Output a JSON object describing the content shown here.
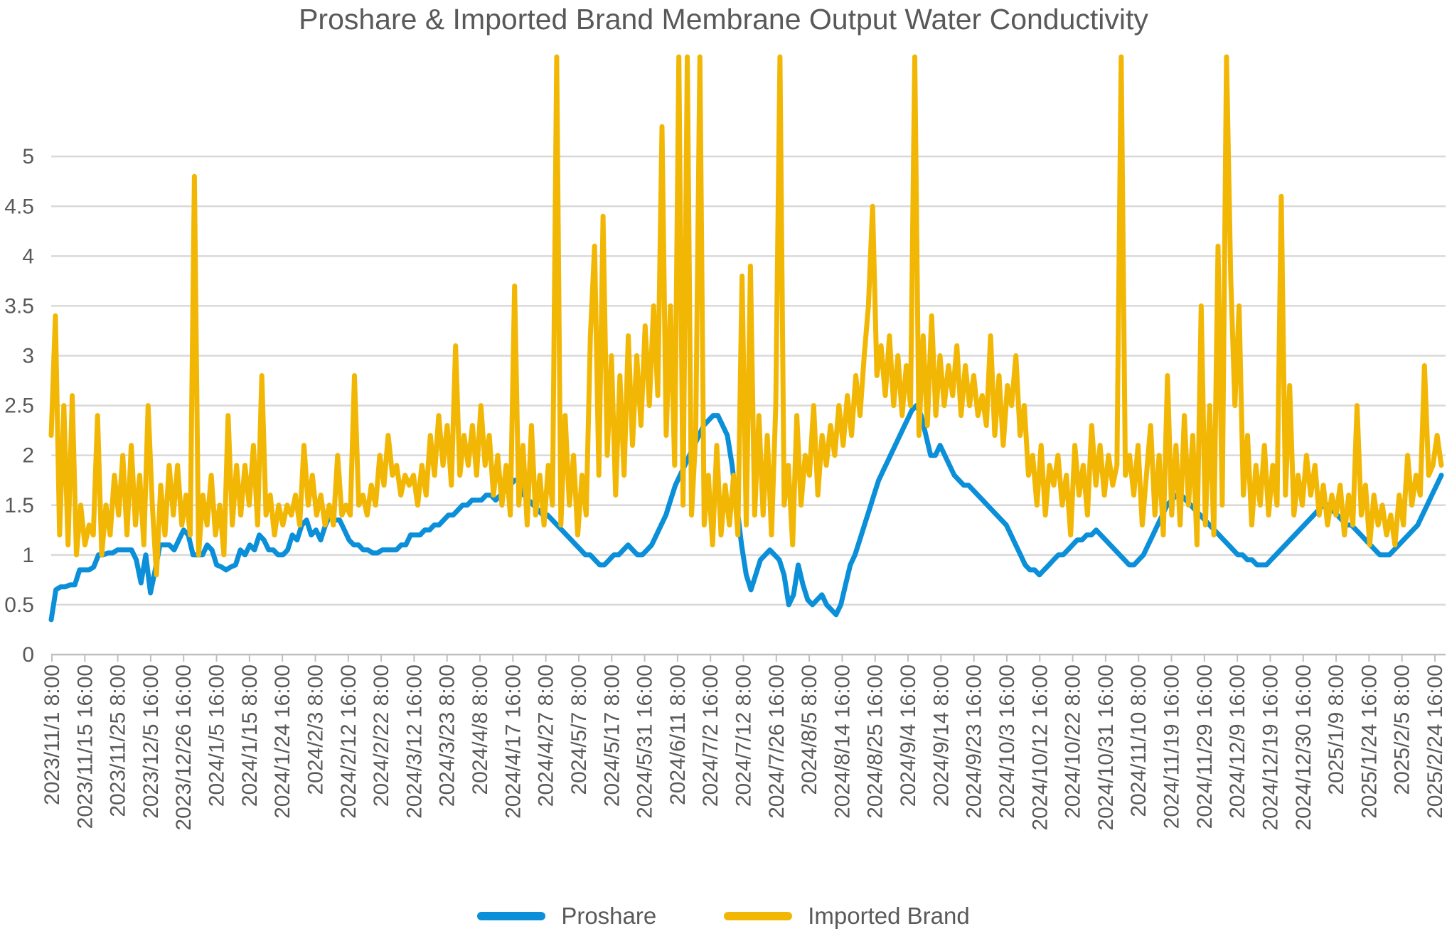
{
  "chart_data": {
    "type": "line",
    "title": "Proshare & Imported Brand Membrane Output Water Conductivity",
    "xlabel": "",
    "ylabel": "",
    "ylim": [
      0,
      6
    ],
    "yticks": [
      "0",
      "0.5",
      "1",
      "1.5",
      "2",
      "2.5",
      "3",
      "3.5",
      "4",
      "4.5",
      "5"
    ],
    "grid": true,
    "legend_position": "bottom",
    "x_tick_labels": [
      "2023/11/1 8:00",
      "2023/11/15 16:00",
      "2023/11/25 8:00",
      "2023/12/5 16:00",
      "2023/12/26 16:00",
      "2024/1/5 16:00",
      "2024/1/15 8:00",
      "2024/1/24 16:00",
      "2024/2/3 8:00",
      "2024/2/12 16:00",
      "2024/2/22 8:00",
      "2024/3/12 16:00",
      "2024/3/23 8:00",
      "2024/4/8 8:00",
      "2024/4/17 16:00",
      "2024/4/27 8:00",
      "2024/5/7 8:00",
      "2024/5/17 8:00",
      "2024/5/31 16:00",
      "2024/6/11 8:00",
      "2024/7/2 16:00",
      "2024/7/12 8:00",
      "2024/7/26 16:00",
      "2024/8/5 8:00",
      "2024/8/14 16:00",
      "2024/8/25 16:00",
      "2024/9/4 16:00",
      "2024/9/14 8:00",
      "2024/9/23 16:00",
      "2024/10/3 16:00",
      "2024/10/12 16:00",
      "2024/10/22 8:00",
      "2024/10/31 16:00",
      "2024/11/10 8:00",
      "2024/11/19 16:00",
      "2024/11/29 16:00",
      "2024/12/9 16:00",
      "2024/12/19 16:00",
      "2024/12/30 16:00",
      "2025/1/9 8:00",
      "2025/1/24 16:00",
      "2025/2/5 8:00",
      "2025/2/24 16:00"
    ],
    "series": [
      {
        "name": "Proshare",
        "color": "#0B8FD9",
        "values": [
          0.35,
          0.65,
          0.68,
          0.68,
          0.7,
          0.7,
          0.85,
          0.85,
          0.85,
          0.88,
          1.0,
          1.0,
          1.02,
          1.02,
          1.05,
          1.05,
          1.05,
          1.05,
          0.95,
          0.72,
          1.0,
          0.62,
          0.85,
          1.1,
          1.1,
          1.1,
          1.05,
          1.15,
          1.25,
          1.2,
          1.0,
          1.0,
          1.0,
          1.1,
          1.05,
          0.9,
          0.88,
          0.85,
          0.88,
          0.9,
          1.05,
          1.0,
          1.1,
          1.05,
          1.2,
          1.15,
          1.05,
          1.05,
          1.0,
          1.0,
          1.05,
          1.2,
          1.15,
          1.3,
          1.35,
          1.2,
          1.25,
          1.15,
          1.3,
          1.4,
          1.35,
          1.35,
          1.25,
          1.15,
          1.1,
          1.1,
          1.05,
          1.05,
          1.02,
          1.02,
          1.05,
          1.05,
          1.05,
          1.05,
          1.1,
          1.1,
          1.2,
          1.2,
          1.2,
          1.25,
          1.25,
          1.3,
          1.3,
          1.35,
          1.4,
          1.4,
          1.45,
          1.5,
          1.5,
          1.55,
          1.55,
          1.55,
          1.6,
          1.6,
          1.55,
          1.6,
          1.65,
          1.7,
          1.75,
          1.75,
          1.6,
          1.55,
          1.5,
          1.45,
          1.4,
          1.4,
          1.35,
          1.3,
          1.25,
          1.2,
          1.15,
          1.1,
          1.05,
          1.0,
          1.0,
          0.95,
          0.9,
          0.9,
          0.95,
          1.0,
          1.0,
          1.05,
          1.1,
          1.05,
          1.0,
          1.0,
          1.05,
          1.1,
          1.2,
          1.3,
          1.4,
          1.55,
          1.7,
          1.8,
          1.9,
          2.0,
          2.1,
          2.2,
          2.3,
          2.35,
          2.4,
          2.4,
          2.3,
          2.2,
          1.9,
          1.5,
          1.1,
          0.8,
          0.65,
          0.8,
          0.95,
          1.0,
          1.05,
          1.0,
          0.95,
          0.8,
          0.5,
          0.6,
          0.9,
          0.7,
          0.55,
          0.5,
          0.55,
          0.6,
          0.5,
          0.45,
          0.4,
          0.5,
          0.7,
          0.9,
          1.0,
          1.15,
          1.3,
          1.45,
          1.6,
          1.75,
          1.85,
          1.95,
          2.05,
          2.15,
          2.25,
          2.35,
          2.45,
          2.5,
          2.4,
          2.2,
          2.0,
          2.0,
          2.1,
          2.0,
          1.9,
          1.8,
          1.75,
          1.7,
          1.7,
          1.65,
          1.6,
          1.55,
          1.5,
          1.45,
          1.4,
          1.35,
          1.3,
          1.2,
          1.1,
          1.0,
          0.9,
          0.85,
          0.85,
          0.8,
          0.85,
          0.9,
          0.95,
          1.0,
          1.0,
          1.05,
          1.1,
          1.15,
          1.15,
          1.2,
          1.2,
          1.25,
          1.2,
          1.15,
          1.1,
          1.05,
          1.0,
          0.95,
          0.9,
          0.9,
          0.95,
          1.0,
          1.1,
          1.2,
          1.3,
          1.4,
          1.5,
          1.55,
          1.6,
          1.6,
          1.55,
          1.5,
          1.45,
          1.4,
          1.35,
          1.3,
          1.25,
          1.2,
          1.15,
          1.1,
          1.05,
          1.0,
          1.0,
          0.95,
          0.95,
          0.9,
          0.9,
          0.9,
          0.95,
          1.0,
          1.05,
          1.1,
          1.15,
          1.2,
          1.25,
          1.3,
          1.35,
          1.4,
          1.45,
          1.5,
          1.5,
          1.45,
          1.4,
          1.35,
          1.3,
          1.3,
          1.25,
          1.2,
          1.15,
          1.1,
          1.05,
          1.0,
          1.0,
          1.0,
          1.05,
          1.1,
          1.15,
          1.2,
          1.25,
          1.3,
          1.4,
          1.5,
          1.6,
          1.7,
          1.8
        ]
      },
      {
        "name": "Imported Brand",
        "color": "#F2B705",
        "values": [
          2.2,
          3.4,
          1.2,
          2.5,
          1.1,
          2.6,
          1.0,
          1.5,
          1.1,
          1.3,
          1.2,
          2.4,
          1.0,
          1.5,
          1.2,
          1.8,
          1.4,
          2.0,
          1.2,
          2.1,
          1.3,
          1.8,
          1.1,
          2.5,
          1.5,
          0.8,
          1.7,
          1.2,
          1.9,
          1.4,
          1.9,
          1.3,
          1.6,
          1.2,
          4.8,
          1.0,
          1.6,
          1.3,
          1.8,
          1.2,
          1.5,
          1.0,
          2.4,
          1.3,
          1.9,
          1.4,
          1.9,
          1.5,
          2.1,
          1.3,
          2.8,
          1.4,
          1.6,
          1.2,
          1.5,
          1.3,
          1.5,
          1.4,
          1.6,
          1.3,
          2.1,
          1.5,
          1.8,
          1.4,
          1.6,
          1.3,
          1.5,
          1.3,
          2.0,
          1.4,
          1.5,
          1.4,
          2.8,
          1.5,
          1.6,
          1.4,
          1.7,
          1.5,
          2.0,
          1.7,
          2.2,
          1.8,
          1.9,
          1.6,
          1.8,
          1.7,
          1.8,
          1.5,
          1.9,
          1.6,
          2.2,
          1.8,
          2.4,
          1.9,
          2.3,
          1.7,
          3.1,
          1.8,
          2.2,
          1.9,
          2.3,
          1.8,
          2.5,
          1.9,
          2.2,
          1.6,
          2.0,
          1.5,
          1.9,
          1.4,
          3.7,
          1.5,
          2.1,
          1.3,
          2.3,
          1.4,
          1.8,
          1.3,
          1.9,
          1.5,
          6.0,
          1.3,
          2.4,
          1.5,
          2.0,
          1.2,
          1.8,
          1.4,
          3.2,
          4.1,
          1.8,
          4.4,
          2.0,
          3.0,
          1.6,
          2.8,
          1.8,
          3.2,
          2.1,
          3.0,
          2.3,
          3.3,
          2.5,
          3.5,
          2.6,
          5.3,
          2.2,
          3.5,
          1.9,
          6.0,
          1.5,
          6.0,
          1.4,
          2.2,
          6.0,
          1.3,
          1.8,
          1.1,
          2.1,
          1.2,
          1.7,
          1.3,
          1.8,
          1.2,
          3.8,
          1.3,
          3.9,
          1.4,
          2.4,
          1.4,
          2.2,
          1.2,
          2.5,
          6.0,
          1.5,
          1.9,
          1.1,
          2.4,
          1.5,
          2.0,
          1.8,
          2.5,
          1.6,
          2.2,
          1.9,
          2.3,
          2.0,
          2.5,
          2.1,
          2.6,
          2.2,
          2.8,
          2.4,
          3.0,
          3.5,
          4.5,
          2.8,
          3.1,
          2.6,
          3.2,
          2.5,
          3.0,
          2.4,
          2.9,
          2.5,
          6.0,
          2.2,
          3.2,
          2.3,
          3.4,
          2.4,
          3.0,
          2.5,
          2.9,
          2.6,
          3.1,
          2.4,
          2.9,
          2.5,
          2.8,
          2.4,
          2.6,
          2.3,
          3.2,
          2.2,
          2.8,
          2.1,
          2.7,
          2.5,
          3.0,
          2.2,
          2.5,
          1.8,
          2.0,
          1.5,
          2.1,
          1.4,
          1.9,
          1.7,
          2.0,
          1.5,
          1.8,
          1.2,
          2.1,
          1.6,
          1.9,
          1.4,
          2.3,
          1.7,
          2.1,
          1.6,
          2.0,
          1.7,
          1.9,
          6.0,
          1.8,
          2.0,
          1.6,
          2.1,
          1.3,
          1.8,
          2.3,
          1.4,
          2.0,
          1.2,
          2.8,
          1.4,
          2.1,
          1.3,
          2.4,
          1.5,
          2.2,
          1.1,
          3.5,
          1.3,
          2.5,
          1.2,
          4.1,
          1.5,
          6.0,
          3.8,
          2.5,
          3.5,
          1.6,
          2.2,
          1.3,
          1.9,
          1.5,
          2.1,
          1.4,
          1.9,
          1.5,
          4.6,
          1.6,
          2.7,
          1.4,
          1.8,
          1.5,
          2.0,
          1.6,
          1.9,
          1.4,
          1.7,
          1.3,
          1.6,
          1.4,
          1.7,
          1.2,
          1.6,
          1.3,
          2.5,
          1.4,
          1.7,
          1.1,
          1.6,
          1.3,
          1.5,
          1.2,
          1.4,
          1.1,
          1.6,
          1.3,
          2.0,
          1.5,
          1.8,
          1.6,
          2.9,
          1.8,
          1.9,
          2.2,
          1.9
        ]
      }
    ]
  },
  "legend": {
    "items": [
      {
        "label": "Proshare",
        "color": "#0B8FD9"
      },
      {
        "label": "Imported Brand",
        "color": "#F2B705"
      }
    ]
  }
}
